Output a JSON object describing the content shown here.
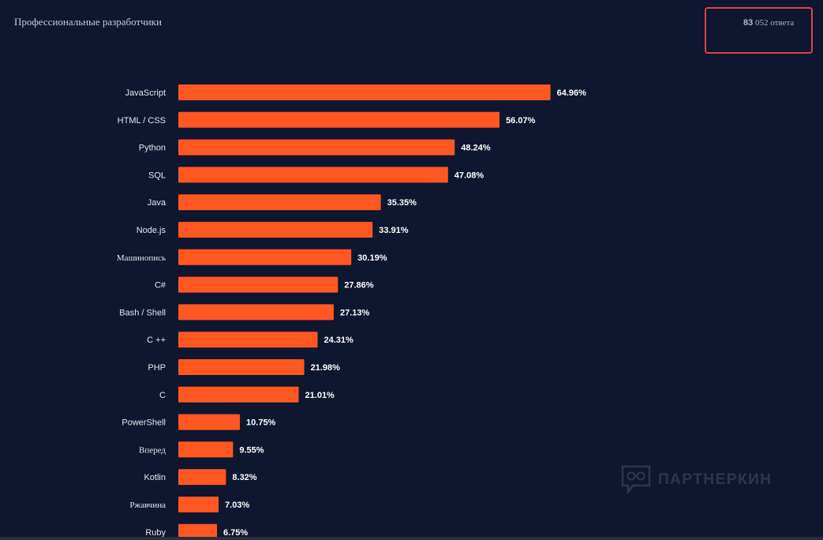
{
  "header": {
    "tab_title": "Профессиональные разработчики",
    "responses_count": "83",
    "responses_rest": " 052 ответа"
  },
  "watermark": {
    "text": "ПАРТНЕРКИН",
    "icon": "speech-bubble-glasses-icon"
  },
  "colors": {
    "background": "#0f1630",
    "bar": "#ff5722",
    "highlight_border": "#d9454a"
  },
  "chart_data": {
    "type": "bar",
    "orientation": "horizontal",
    "title": "Профессиональные разработчики",
    "xlabel": "",
    "ylabel": "",
    "xlim": [
      0,
      100
    ],
    "unit": "%",
    "grid": false,
    "categories": [
      "JavaScript",
      "HTML / CSS",
      "Python",
      "SQL",
      "Java",
      "Node.js",
      "Машинопись",
      "C#",
      "Bash / Shell",
      "C ++",
      "PHP",
      "C",
      "PowerShell",
      "Вперед",
      "Kotlin",
      "Ржавчина",
      "Ruby"
    ],
    "values": [
      64.96,
      56.07,
      48.24,
      47.08,
      35.35,
      33.91,
      30.19,
      27.86,
      27.13,
      24.31,
      21.98,
      21.01,
      10.75,
      9.55,
      8.32,
      7.03,
      6.75
    ],
    "value_labels": [
      "64.96%",
      "56.07%",
      "48.24%",
      "47.08%",
      "35.35%",
      "33.91%",
      "30.19%",
      "27.86%",
      "27.13%",
      "24.31%",
      "21.98%",
      "21.01%",
      "10.75%",
      "9.55%",
      "8.32%",
      "7.03%",
      "6.75%"
    ]
  }
}
